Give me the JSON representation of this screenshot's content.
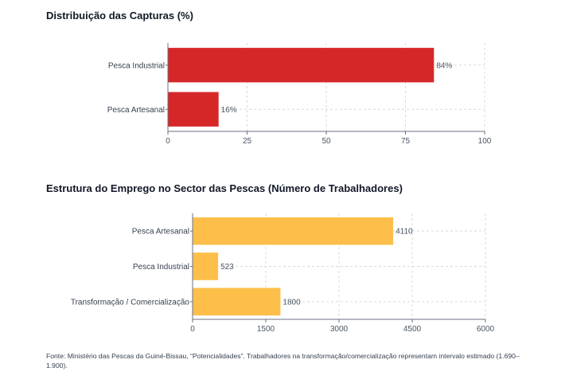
{
  "chart_data": [
    {
      "type": "bar",
      "orientation": "horizontal",
      "title": "Distribuição das Capturas (%)",
      "categories": [
        "Pesca Industrial",
        "Pesca Artesanal"
      ],
      "values": [
        84,
        16
      ],
      "data_labels": [
        "84%",
        "16%"
      ],
      "xlim": [
        0,
        100
      ],
      "xticks": [
        0,
        25,
        50,
        75,
        100
      ],
      "grid": true,
      "color": "#d62728"
    },
    {
      "type": "bar",
      "orientation": "horizontal",
      "title": "Estrutura do Emprego no Sector das Pescas (Número de Trabalhadores)",
      "categories": [
        "Pesca Artesanal",
        "Pesca Industrial",
        "Transformação / Comercialização"
      ],
      "values": [
        4110,
        523,
        1800
      ],
      "data_labels": [
        "4110",
        "523",
        "1800"
      ],
      "xlim": [
        0,
        6000
      ],
      "xticks": [
        0,
        1500,
        3000,
        4500,
        6000
      ],
      "grid": true,
      "color": "#fdbf4a"
    }
  ],
  "footnote": "Fonte: Ministério das Pescas da Guiné-Bissau, “Potencialidades”. Trabalhadores na transformação/comercialização representam intervalo estimado (1.690–1.900)."
}
